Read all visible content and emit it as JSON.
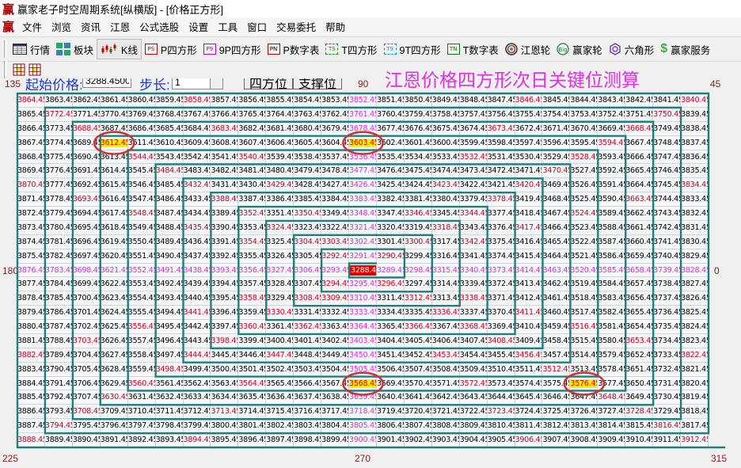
{
  "window": {
    "title": "赢家老子时空周期系统[纵横版] - [价格正方形]",
    "logo": "赢"
  },
  "menu": [
    "文件",
    "浏览",
    "资讯",
    "江恩",
    "公式选股",
    "设置",
    "工具",
    "窗口",
    "交易委托",
    "帮助"
  ],
  "toolbar": [
    {
      "label": "行情",
      "icon": "table-icon"
    },
    {
      "label": "板块",
      "icon": "tiles-icon"
    },
    {
      "label": "K线",
      "icon": "candlestick-icon",
      "pressed": true
    },
    {
      "label": "P四方形",
      "icon": "ps-icon",
      "badge": "PS",
      "color": "#c00000"
    },
    {
      "label": "9P四方形",
      "icon": "p9-icon",
      "badge": "P9",
      "color": "#c000c0"
    },
    {
      "label": "P数字表",
      "icon": "pn-icon",
      "badge": "PN",
      "color": "#c00000"
    },
    {
      "label": "T四方形",
      "icon": "ts-icon",
      "badge": "TS",
      "color": "#00a000"
    },
    {
      "label": "9T四方形",
      "icon": "t9-icon",
      "badge": "T9",
      "color": "#00a0c0"
    },
    {
      "label": "T数字表",
      "icon": "tn-icon",
      "badge": "TN",
      "color": "#008000"
    },
    {
      "label": "江恩轮",
      "icon": "gann-wheel-icon"
    },
    {
      "label": "赢家轮",
      "icon": "big-wheel-icon"
    },
    {
      "label": "六角形",
      "icon": "hexagon-icon"
    },
    {
      "label": "赢家服务",
      "icon": "dollar-icon"
    }
  ],
  "params": {
    "start_label": "起始价格:",
    "start_value": "3288.4500",
    "step_label": "步长:",
    "step_value": "1",
    "btn_square": "四方位",
    "btn_support": "支撑位"
  },
  "overlay_title": "江恩价格四方形次日关键位测算",
  "angles": {
    "a135": "135",
    "a90": "90",
    "a45": "45",
    "a180": "180",
    "a0": "0",
    "a225": "225",
    "a270": "270",
    "a315": "315"
  },
  "colors": {
    "black": "#000000",
    "red": "#c8001e",
    "magenta": "#e028e0",
    "highlight": "#ffee00",
    "center": "#e00000",
    "spiral": "#1f7f80"
  },
  "grid": {
    "start_price": 3288.45,
    "step": 1,
    "color_legend": {
      "k": "black",
      "r": "red",
      "m": "magenta",
      "y": "highlighted",
      "c": "center"
    },
    "colors": [
      "rkkkkkrkkkkkmkkkkkrkkkkkr",
      "krkkkkkkkkkkmkkkkkkkkkkrk",
      "kkrkkkkrkkkkmkkkkrkkkkrkk",
      "kkkykkkkkkkkykkkkkkkkrkkk",
      "kkkkrkkkrkkkmkkkrkkkrkkkk",
      "kkkkkrkkkkkkmkkkkkkrkkkkk",
      "rkkkkkrkkrkkmkkrkkrkkkkkr",
      "kkrkkkkrkkkkmkkkkrkkkkrkk",
      "kkkkrkkkrkrkmkrkrkkkrkkkk",
      "kkkkkkrkkrkkmkkrkkrkkkkkk",
      "kkkkkkkkrkrrmkrkrkkkkkkkk",
      "kkkkkkkkkkkrmrkkkkkkkkkkk",
      "mmmmmmmmmmmmcmmmmmmmmmmmm",
      "kkkkkkkkkkkrmrkkkkkkkkkkk",
      "kkkkkkkkrkrrmkrkrkkkkkkkk",
      "kkkkkkrkkrkkmkkrkkrkkkkkk",
      "kkkkrkkkrkrkmkrkrkkkrkkkk",
      "kkrkkkkrkkkkmkkkkrkkkkrkk",
      "rkkkkkrkkrkkmkkrkkrkkkkkr",
      "kkkkkrkkkkkkmkkkkkkrkkkkk",
      "kkkkrkkkrkkkykkkrkkkykkkk",
      "kkkrkkkkkkkkmkkkkkkkkrkkk",
      "kkrkkkkrkkkkmkkkkrkkkkrkk",
      "krkkkkkkkkkkmkkkkkkkkkkrk",
      "rkkkkkrkkkkkmkkkkkrkkkkkr"
    ],
    "rows": [
      [
        3864.45,
        3863.45,
        3862.45,
        3861.45,
        3860.45,
        3859.45,
        3858.45,
        3857.45,
        3856.45,
        3855.45,
        3854.45,
        3853.45,
        3852.45,
        3851.45,
        3850.45,
        3849.45,
        3848.45,
        3847.45,
        3846.45,
        3845.45,
        3844.45,
        3843.45,
        3842.45,
        3841.45,
        3840.45
      ],
      [
        3865.45,
        3772.45,
        3771.45,
        3770.45,
        3769.45,
        3768.45,
        3767.45,
        3766.45,
        3765.45,
        3764.45,
        3763.45,
        3762.45,
        3761.45,
        3760.45,
        3759.45,
        3758.45,
        3757.45,
        3756.45,
        3755.45,
        3754.45,
        3753.45,
        3752.45,
        3751.45,
        3750.45,
        3839.45
      ],
      [
        3866.45,
        3773.45,
        3688.45,
        3687.45,
        3686.45,
        3685.45,
        3684.45,
        3683.45,
        3682.45,
        3681.45,
        3680.45,
        3679.45,
        3678.45,
        3677.45,
        3676.45,
        3675.45,
        3674.45,
        3673.45,
        3672.45,
        3671.45,
        3670.45,
        3669.45,
        3668.45,
        3749.45,
        3838.45
      ],
      [
        3867.45,
        3774.45,
        3689.45,
        3612.45,
        3611.45,
        3610.45,
        3609.45,
        3608.45,
        3607.45,
        3606.45,
        3605.45,
        3604.45,
        3603.45,
        3602.45,
        3601.45,
        3600.45,
        3599.45,
        3598.45,
        3597.45,
        3596.45,
        3595.45,
        3594.45,
        3667.45,
        3748.45,
        3837.45
      ],
      [
        3868.45,
        3775.45,
        3690.45,
        3613.45,
        3544.45,
        3543.45,
        3542.45,
        3541.45,
        3540.45,
        3539.45,
        3538.45,
        3537.45,
        3536.45,
        3535.45,
        3534.45,
        3533.45,
        3532.45,
        3531.45,
        3530.45,
        3529.45,
        3528.45,
        3593.45,
        3666.45,
        3747.45,
        3836.45
      ],
      [
        3869.45,
        3776.45,
        3691.45,
        3614.45,
        3545.45,
        3484.45,
        3483.45,
        3482.45,
        3481.45,
        3480.45,
        3479.45,
        3478.45,
        3477.45,
        3476.45,
        3475.45,
        3474.45,
        3473.45,
        3472.45,
        3471.45,
        3470.45,
        3527.45,
        3592.45,
        3665.45,
        3746.45,
        3835.45
      ],
      [
        3870.45,
        3777.45,
        3692.45,
        3615.45,
        3546.45,
        3485.45,
        3432.45,
        3431.45,
        3430.45,
        3429.45,
        3428.45,
        3427.45,
        3426.45,
        3425.45,
        3424.45,
        3423.45,
        3422.45,
        3421.45,
        3420.45,
        3469.45,
        3526.45,
        3591.45,
        3664.45,
        3745.45,
        3834.45
      ],
      [
        3871.45,
        3778.45,
        3693.45,
        3616.45,
        3547.45,
        3486.45,
        3433.45,
        3388.45,
        3387.45,
        3386.45,
        3385.45,
        3384.45,
        3383.45,
        3382.45,
        3381.45,
        3380.45,
        3379.45,
        3378.45,
        3419.45,
        3468.45,
        3525.45,
        3590.45,
        3663.45,
        3744.45,
        3833.45
      ],
      [
        3872.45,
        3779.45,
        3694.45,
        3617.45,
        3548.45,
        3487.45,
        3434.45,
        3389.45,
        3352.45,
        3351.45,
        3350.45,
        3349.45,
        3348.45,
        3347.45,
        3346.45,
        3345.45,
        3344.45,
        3377.45,
        3418.45,
        3467.45,
        3524.45,
        3589.45,
        3662.45,
        3743.45,
        3832.45
      ],
      [
        3873.45,
        3780.45,
        3695.45,
        3618.45,
        3549.45,
        3488.45,
        3435.45,
        3390.45,
        3353.45,
        3324.45,
        3323.45,
        3322.45,
        3321.45,
        3320.45,
        3319.45,
        3318.45,
        3343.45,
        3376.45,
        3417.45,
        3466.45,
        3523.45,
        3588.45,
        3661.45,
        3742.45,
        3831.45
      ],
      [
        3874.45,
        3781.45,
        3696.45,
        3619.45,
        3550.45,
        3489.45,
        3436.45,
        3391.45,
        3354.45,
        3325.45,
        3304.45,
        3303.45,
        3302.45,
        3301.45,
        3300.45,
        3317.45,
        3342.45,
        3375.45,
        3416.45,
        3465.45,
        3522.45,
        3587.45,
        3660.45,
        3741.45,
        3830.45
      ],
      [
        3875.45,
        3782.45,
        3697.45,
        3620.45,
        3551.45,
        3490.45,
        3437.45,
        3392.45,
        3355.45,
        3326.45,
        3305.45,
        3292.45,
        3291.45,
        3290.45,
        3299.45,
        3316.45,
        3341.45,
        3374.45,
        3415.45,
        3464.45,
        3521.45,
        3586.45,
        3659.45,
        3740.45,
        3829.45
      ],
      [
        3876.45,
        3783.45,
        3698.45,
        3621.45,
        3552.45,
        3491.45,
        3438.45,
        3393.45,
        3356.45,
        3327.45,
        3306.45,
        3293.45,
        3288.45,
        3289.45,
        3298.45,
        3315.45,
        3340.45,
        3373.45,
        3414.45,
        3463.45,
        3520.45,
        3585.45,
        3658.45,
        3739.45,
        3828.45
      ],
      [
        3877.45,
        3784.45,
        3699.45,
        3622.45,
        3553.45,
        3492.45,
        3439.45,
        3394.45,
        3357.45,
        3328.45,
        3307.45,
        3294.45,
        3295.45,
        3296.45,
        3297.45,
        3314.45,
        3339.45,
        3372.45,
        3413.45,
        3462.45,
        3519.45,
        3584.45,
        3657.45,
        3738.45,
        3827.45
      ],
      [
        3878.45,
        3785.45,
        3700.45,
        3623.45,
        3554.45,
        3493.45,
        3440.45,
        3395.45,
        3358.45,
        3329.45,
        3308.45,
        3309.45,
        3310.45,
        3311.45,
        3312.45,
        3313.45,
        3338.45,
        3371.45,
        3412.45,
        3461.45,
        3518.45,
        3583.45,
        3656.45,
        3737.45,
        3826.45
      ],
      [
        3879.45,
        3786.45,
        3701.45,
        3624.45,
        3555.45,
        3494.45,
        3441.45,
        3396.45,
        3359.45,
        3330.45,
        3331.45,
        3332.45,
        3333.45,
        3334.45,
        3335.45,
        3336.45,
        3337.45,
        3370.45,
        3411.45,
        3460.45,
        3517.45,
        3582.45,
        3655.45,
        3736.45,
        3825.45
      ],
      [
        3880.45,
        3787.45,
        3702.45,
        3625.45,
        3556.45,
        3495.45,
        3442.45,
        3397.45,
        3360.45,
        3361.45,
        3362.45,
        3363.45,
        3364.45,
        3365.45,
        3366.45,
        3367.45,
        3368.45,
        3369.45,
        3410.45,
        3459.45,
        3516.45,
        3581.45,
        3654.45,
        3735.45,
        3824.45
      ],
      [
        3881.45,
        3788.45,
        3703.45,
        3626.45,
        3557.45,
        3496.45,
        3443.45,
        3398.45,
        3399.45,
        3400.45,
        3401.45,
        3402.45,
        3403.45,
        3404.45,
        3405.45,
        3406.45,
        3407.45,
        3408.45,
        3409.45,
        3458.45,
        3515.45,
        3580.45,
        3653.45,
        3734.45,
        3823.45
      ],
      [
        3882.45,
        3789.45,
        3704.45,
        3627.45,
        3558.45,
        3497.45,
        3444.45,
        3445.45,
        3446.45,
        3447.45,
        3448.45,
        3449.45,
        3450.45,
        3451.45,
        3452.45,
        3453.45,
        3454.45,
        3455.45,
        3456.45,
        3457.45,
        3514.45,
        3579.45,
        3652.45,
        3733.45,
        3822.45
      ],
      [
        3883.45,
        3790.45,
        3705.45,
        3628.45,
        3559.45,
        3498.45,
        3499.45,
        3500.45,
        3501.45,
        3502.45,
        3503.45,
        3504.45,
        3505.45,
        3506.45,
        3507.45,
        3508.45,
        3509.45,
        3510.45,
        3511.45,
        3512.45,
        3513.45,
        3578.45,
        3651.45,
        3732.45,
        3821.45
      ],
      [
        3884.45,
        3791.45,
        3706.45,
        3629.45,
        3560.45,
        3561.45,
        3562.45,
        3563.45,
        3564.45,
        3565.45,
        3566.45,
        3567.45,
        3568.45,
        3569.45,
        3570.45,
        3571.45,
        3572.45,
        3573.45,
        3574.45,
        3575.45,
        3576.45,
        3577.45,
        3650.45,
        3731.45,
        3820.45
      ],
      [
        3885.45,
        3792.45,
        3707.45,
        3630.45,
        3631.45,
        3632.45,
        3633.45,
        3634.45,
        3635.45,
        3636.45,
        3637.45,
        3638.45,
        3639.45,
        3640.45,
        3641.45,
        3642.45,
        3643.45,
        3644.45,
        3645.45,
        3646.45,
        3647.45,
        3648.45,
        3649.45,
        3730.45,
        3819.45
      ],
      [
        3886.45,
        3793.45,
        3708.45,
        3709.45,
        3710.45,
        3711.45,
        3712.45,
        3713.45,
        3714.45,
        3715.45,
        3716.45,
        3717.45,
        3718.45,
        3719.45,
        3720.45,
        3721.45,
        3722.45,
        3723.45,
        3724.45,
        3725.45,
        3726.45,
        3727.45,
        3728.45,
        3729.45,
        3818.45
      ],
      [
        3887.45,
        3794.45,
        3795.45,
        3796.45,
        3797.45,
        3798.45,
        3799.45,
        3800.45,
        3801.45,
        3802.45,
        3803.45,
        3804.45,
        3805.45,
        3806.45,
        3807.45,
        3808.45,
        3809.45,
        3810.45,
        3811.45,
        3812.45,
        3813.45,
        3814.45,
        3815.45,
        3816.45,
        3817.45
      ],
      [
        3888.45,
        3889.45,
        3890.45,
        3891.45,
        3892.45,
        3893.45,
        3894.45,
        3895.45,
        3896.45,
        3897.45,
        3898.45,
        3899.45,
        3900.45,
        3901.45,
        3902.45,
        3903.45,
        3904.45,
        3905.45,
        3906.45,
        3907.45,
        3908.45,
        3909.45,
        3910.45,
        3911.45,
        3912.45
      ]
    ]
  }
}
